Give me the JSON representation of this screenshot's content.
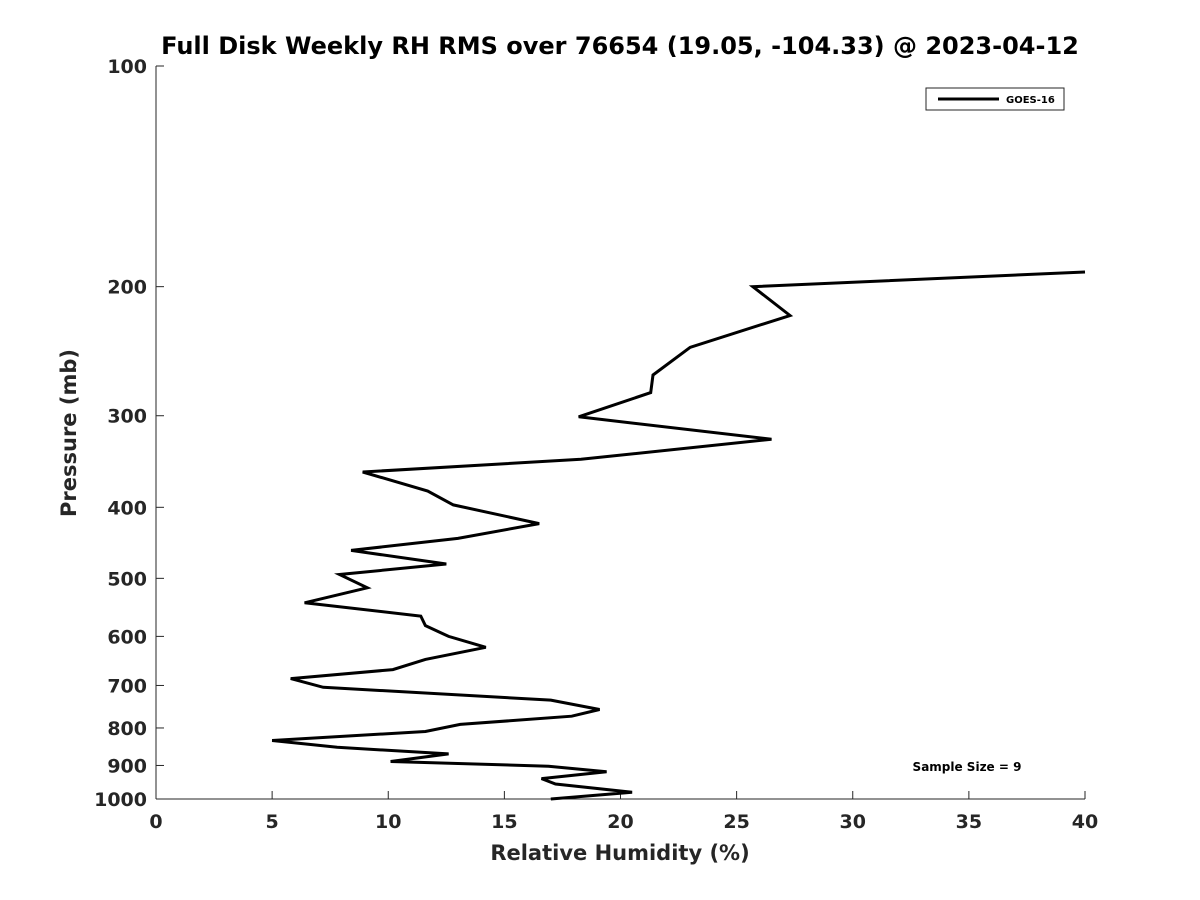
{
  "chart_data": {
    "type": "line",
    "title": "Full Disk Weekly RH RMS over 76654 (19.05, -104.33) @ 2023-04-12",
    "xlabel": "Relative Humidity (%)",
    "ylabel": "Pressure (mb)",
    "xlim": [
      0,
      40
    ],
    "ylim": [
      100,
      1000
    ],
    "y_scale": "log",
    "y_reversed": true,
    "x_ticks": [
      0,
      5,
      10,
      15,
      20,
      25,
      30,
      35,
      40
    ],
    "y_ticks": [
      100,
      200,
      300,
      400,
      500,
      600,
      700,
      800,
      900,
      1000
    ],
    "grid": false,
    "legend": {
      "position": "top-right",
      "entries": [
        "GOES-16"
      ]
    },
    "annotations": {
      "sample_size": "Sample Size = 9"
    },
    "series": [
      {
        "name": "GOES-16",
        "color": "#000000",
        "points": [
          [
            40.0,
            191
          ],
          [
            25.7,
            200
          ],
          [
            27.3,
            219
          ],
          [
            23.0,
            242
          ],
          [
            21.4,
            264
          ],
          [
            21.3,
            279
          ],
          [
            18.2,
            301
          ],
          [
            26.5,
            323
          ],
          [
            18.3,
            344
          ],
          [
            8.9,
            358
          ],
          [
            11.7,
            380
          ],
          [
            12.8,
            397
          ],
          [
            16.5,
            421
          ],
          [
            13.0,
            441
          ],
          [
            8.4,
            458
          ],
          [
            12.5,
            478
          ],
          [
            7.9,
            494
          ],
          [
            9.1,
            515
          ],
          [
            6.4,
            540
          ],
          [
            11.4,
            563
          ],
          [
            11.6,
            580
          ],
          [
            12.6,
            600
          ],
          [
            14.2,
            621
          ],
          [
            11.6,
            645
          ],
          [
            10.2,
            666
          ],
          [
            5.8,
            685
          ],
          [
            7.2,
            704
          ],
          [
            17.0,
            733
          ],
          [
            19.1,
            755
          ],
          [
            17.9,
            771
          ],
          [
            13.1,
            791
          ],
          [
            11.6,
            809
          ],
          [
            5.0,
            832
          ],
          [
            7.8,
            850
          ],
          [
            12.6,
            868
          ],
          [
            10.1,
            889
          ],
          [
            16.9,
            902
          ],
          [
            19.4,
            918
          ],
          [
            16.6,
            938
          ],
          [
            17.2,
            954
          ],
          [
            20.5,
            979
          ],
          [
            17.0,
            1000
          ]
        ]
      }
    ]
  }
}
